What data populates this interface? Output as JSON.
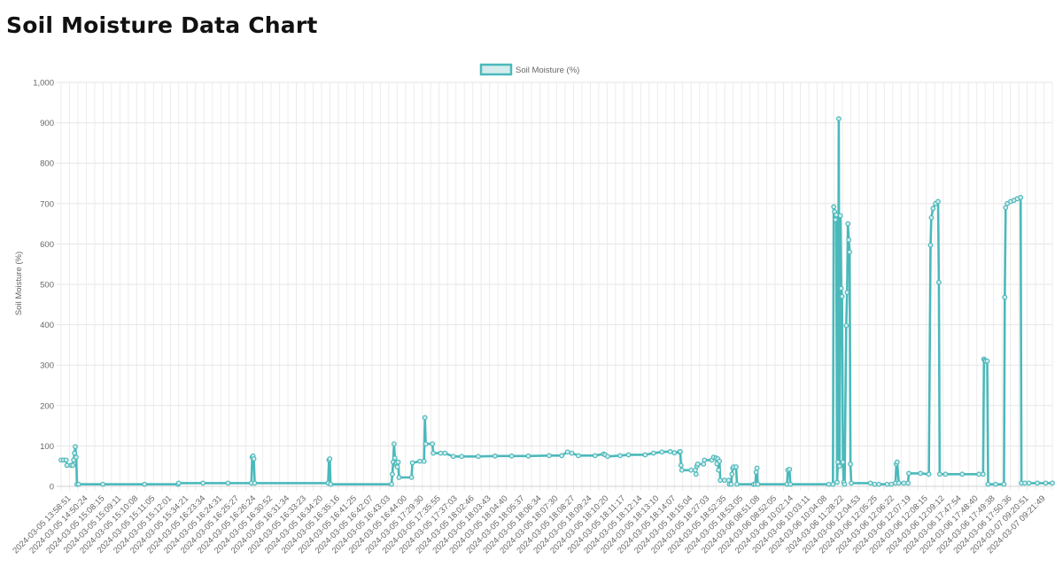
{
  "page": {
    "title": "Soil Moisture Data Chart"
  },
  "chart_data": {
    "type": "line",
    "title": "",
    "xlabel": "",
    "ylabel": "Soil Moisture (%)",
    "ylim": [
      0,
      1000
    ],
    "y_ticks": [
      0,
      100,
      200,
      300,
      400,
      500,
      600,
      700,
      800,
      900,
      1000
    ],
    "y_tick_labels": [
      "0",
      "100",
      "200",
      "300",
      "400",
      "500",
      "600",
      "700",
      "800",
      "900",
      "1,000"
    ],
    "grid": true,
    "legend_position": "top-center",
    "series_color": "#4BB9BB",
    "series_fill": "#D5ECEC",
    "x_tick_labels": [
      "2024-03-05 13:58:51",
      "2024-03-05 14:50:24",
      "2024-03-05 15:08:15",
      "2024-03-05 15:09:11",
      "2024-03-05 15:10:08",
      "2024-03-05 15:11:05",
      "2024-03-05 15:12:01",
      "2024-03-05 15:34:21",
      "2024-03-05 16:23:34",
      "2024-03-05 16:24:31",
      "2024-03-05 16:25:27",
      "2024-03-05 16:26:24",
      "2024-03-05 16:30:52",
      "2024-03-05 16:31:34",
      "2024-03-05 16:33:23",
      "2024-03-05 16:34:20",
      "2024-03-05 16:35:16",
      "2024-03-05 16:41:25",
      "2024-03-05 16:42:07",
      "2024-03-05 16:43:03",
      "2024-03-05 16:44:00",
      "2024-03-05 17:29:30",
      "2024-03-05 17:35:55",
      "2024-03-05 17:37:03",
      "2024-03-05 18:02:46",
      "2024-03-05 18:03:43",
      "2024-03-05 18:04:40",
      "2024-03-05 18:05:37",
      "2024-03-05 18:06:34",
      "2024-03-05 18:07:30",
      "2024-03-05 18:08:27",
      "2024-03-05 18:09:24",
      "2024-03-05 18:10:20",
      "2024-03-05 18:11:17",
      "2024-03-05 18:12:14",
      "2024-03-05 18:13:10",
      "2024-03-05 18:14:07",
      "2024-03-05 18:15:04",
      "2024-03-05 18:27:03",
      "2024-03-05 18:52:35",
      "2024-03-05 18:53:05",
      "2024-03-06 08:51:08",
      "2024-03-06 08:52:05",
      "2024-03-06 10:02:14",
      "2024-03-06 10:03:11",
      "2024-03-06 10:04:08",
      "2024-03-06 11:28:22",
      "2024-03-06 12:04:53",
      "2024-03-06 12:05:25",
      "2024-03-06 12:06:22",
      "2024-03-06 12:07:19",
      "2024-03-06 12:08:15",
      "2024-03-06 12:09:12",
      "2024-03-06 17:47:54",
      "2024-03-06 17:48:40",
      "2024-03-06 17:49:38",
      "2024-03-06 17:50:36",
      "2024-03-07 09:20:51",
      "2024-03-07 09:21:49"
    ],
    "series": [
      {
        "name": "Soil Moisture (%)",
        "points": [
          [
            0,
            65
          ],
          [
            3,
            65
          ],
          [
            6,
            65
          ],
          [
            7,
            52
          ],
          [
            12,
            52
          ],
          [
            14,
            52
          ],
          [
            15,
            65
          ],
          [
            16,
            82
          ],
          [
            17,
            98
          ],
          [
            18,
            72
          ],
          [
            19,
            5
          ],
          [
            21,
            5
          ],
          [
            50,
            5
          ],
          [
            100,
            5
          ],
          [
            140,
            5
          ],
          [
            141,
            8
          ],
          [
            170,
            8
          ],
          [
            200,
            8
          ],
          [
            228,
            8
          ],
          [
            229,
            72
          ],
          [
            230,
            75
          ],
          [
            231,
            68
          ],
          [
            232,
            8
          ],
          [
            320,
            8
          ],
          [
            321,
            65
          ],
          [
            322,
            68
          ],
          [
            323,
            5
          ],
          [
            396,
            5
          ],
          [
            397,
            30
          ],
          [
            398,
            60
          ],
          [
            399,
            105
          ],
          [
            400,
            70
          ],
          [
            401,
            55
          ],
          [
            402,
            58
          ],
          [
            403,
            48
          ],
          [
            404,
            60
          ],
          [
            405,
            22
          ],
          [
            420,
            22
          ],
          [
            421,
            58
          ],
          [
            430,
            62
          ],
          [
            435,
            62
          ],
          [
            436,
            170
          ],
          [
            437,
            105
          ],
          [
            445,
            105
          ],
          [
            446,
            82
          ],
          [
            455,
            82
          ],
          [
            460,
            82
          ],
          [
            470,
            74
          ],
          [
            480,
            74
          ],
          [
            500,
            74
          ],
          [
            520,
            75
          ],
          [
            540,
            75
          ],
          [
            560,
            75
          ],
          [
            585,
            76
          ],
          [
            600,
            76
          ],
          [
            607,
            85
          ],
          [
            612,
            82
          ],
          [
            620,
            76
          ],
          [
            640,
            76
          ],
          [
            650,
            80
          ],
          [
            652,
            78
          ],
          [
            655,
            74
          ],
          [
            670,
            76
          ],
          [
            680,
            78
          ],
          [
            700,
            78
          ],
          [
            710,
            82
          ],
          [
            720,
            85
          ],
          [
            730,
            86
          ],
          [
            735,
            83
          ],
          [
            741,
            85
          ],
          [
            742,
            86
          ],
          [
            743,
            52
          ],
          [
            744,
            40
          ],
          [
            755,
            40
          ],
          [
            760,
            40
          ],
          [
            761,
            30
          ],
          [
            762,
            50
          ],
          [
            763,
            55
          ],
          [
            770,
            55
          ],
          [
            771,
            65
          ],
          [
            780,
            65
          ],
          [
            782,
            72
          ],
          [
            785,
            70
          ],
          [
            786,
            56
          ],
          [
            787,
            68
          ],
          [
            788,
            40
          ],
          [
            789,
            62
          ],
          [
            790,
            15
          ],
          [
            795,
            15
          ],
          [
            800,
            15
          ],
          [
            801,
            5
          ],
          [
            803,
            5
          ],
          [
            804,
            30
          ],
          [
            805,
            45
          ],
          [
            806,
            48
          ],
          [
            809,
            48
          ],
          [
            810,
            5
          ],
          [
            830,
            5
          ],
          [
            832,
            5
          ],
          [
            833,
            35
          ],
          [
            834,
            45
          ],
          [
            835,
            5
          ],
          [
            870,
            5
          ],
          [
            871,
            40
          ],
          [
            873,
            42
          ],
          [
            874,
            5
          ],
          [
            920,
            5
          ],
          [
            925,
            5
          ],
          [
            926,
            692
          ],
          [
            927,
            680
          ],
          [
            928,
            660
          ],
          [
            929,
            672
          ],
          [
            930,
            10
          ],
          [
            931,
            60
          ],
          [
            932,
            910
          ],
          [
            933,
            50
          ],
          [
            934,
            670
          ],
          [
            935,
            490
          ],
          [
            936,
            470
          ],
          [
            937,
            60
          ],
          [
            938,
            10
          ],
          [
            939,
            5
          ],
          [
            941,
            398
          ],
          [
            942,
            480
          ],
          [
            943,
            650
          ],
          [
            944,
            610
          ],
          [
            945,
            580
          ],
          [
            946,
            55
          ],
          [
            947,
            8
          ],
          [
            970,
            8
          ],
          [
            975,
            5
          ],
          [
            980,
            5
          ],
          [
            990,
            5
          ],
          [
            995,
            5
          ],
          [
            1000,
            8
          ],
          [
            1001,
            55
          ],
          [
            1002,
            60
          ],
          [
            1004,
            8
          ],
          [
            1010,
            8
          ],
          [
            1015,
            8
          ],
          [
            1016,
            32
          ],
          [
            1030,
            32
          ],
          [
            1040,
            30
          ],
          [
            1042,
            597
          ],
          [
            1043,
            665
          ],
          [
            1045,
            688
          ],
          [
            1048,
            700
          ],
          [
            1051,
            705
          ],
          [
            1052,
            505
          ],
          [
            1053,
            30
          ],
          [
            1060,
            30
          ],
          [
            1080,
            30
          ],
          [
            1100,
            30
          ],
          [
            1105,
            30
          ],
          [
            1106,
            315
          ],
          [
            1107,
            312
          ],
          [
            1108,
            310
          ],
          [
            1110,
            310
          ],
          [
            1111,
            5
          ],
          [
            1120,
            5
          ],
          [
            1130,
            5
          ],
          [
            1131,
            468
          ],
          [
            1132,
            690
          ],
          [
            1134,
            700
          ],
          [
            1138,
            705
          ],
          [
            1142,
            708
          ],
          [
            1146,
            712
          ],
          [
            1150,
            715
          ],
          [
            1151,
            8
          ],
          [
            1155,
            8
          ],
          [
            1160,
            8
          ],
          [
            1170,
            8
          ],
          [
            1180,
            8
          ],
          [
            1188,
            8
          ]
        ]
      }
    ]
  }
}
